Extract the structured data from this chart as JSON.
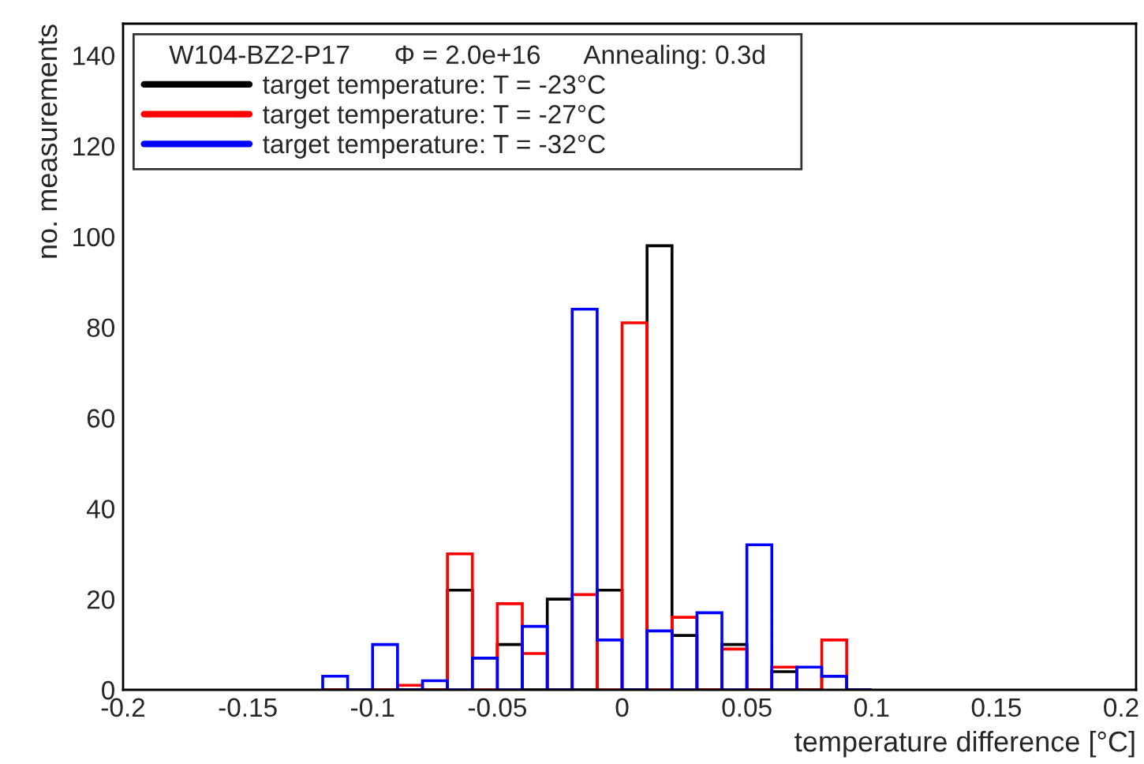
{
  "chart_data": {
    "type": "histogram",
    "xlabel": "temperature difference [°C]",
    "ylabel": "no. measurements",
    "legend_title": "W104-BZ2-P17      Φ = 2.0e+16      Annealing: 0.3d",
    "bins": [
      -0.12,
      -0.11,
      -0.1,
      -0.09,
      -0.08,
      -0.07,
      -0.06,
      -0.05,
      -0.04,
      -0.03,
      -0.02,
      -0.01,
      0,
      0.01,
      0.02,
      0.03,
      0.04,
      0.05,
      0.06,
      0.07,
      0.08,
      0.09,
      0.1
    ],
    "series": [
      {
        "name": "target temperature: T = -23°C",
        "color": "#000000",
        "values": [
          0,
          0,
          0,
          0,
          0,
          22,
          7,
          10,
          0,
          20,
          0,
          22,
          0,
          98,
          12,
          0,
          10,
          0,
          4,
          0,
          3,
          0
        ]
      },
      {
        "name": "target temperature: T = -27°C",
        "color": "#ff0000",
        "values": [
          0,
          0,
          0,
          1,
          0,
          30,
          0,
          19,
          8,
          0,
          21,
          0,
          81,
          0,
          16,
          0,
          9,
          0,
          5,
          0,
          11,
          0
        ]
      },
      {
        "name": "target temperature: T = -32°C",
        "color": "#0000ff",
        "values": [
          3,
          0,
          10,
          0,
          2,
          0,
          7,
          0,
          14,
          0,
          84,
          11,
          0,
          13,
          0,
          17,
          0,
          32,
          0,
          5,
          3,
          0
        ]
      }
    ],
    "xlim": [
      -0.2,
      0.206
    ],
    "xticks": [
      -0.2,
      -0.15,
      -0.1,
      -0.05,
      0,
      0.05,
      0.1,
      0.15,
      0.2
    ],
    "ylim": [
      0,
      147
    ],
    "yticks": [
      0,
      20,
      40,
      60,
      80,
      100,
      120,
      140
    ],
    "legend": "top",
    "grid": false
  }
}
